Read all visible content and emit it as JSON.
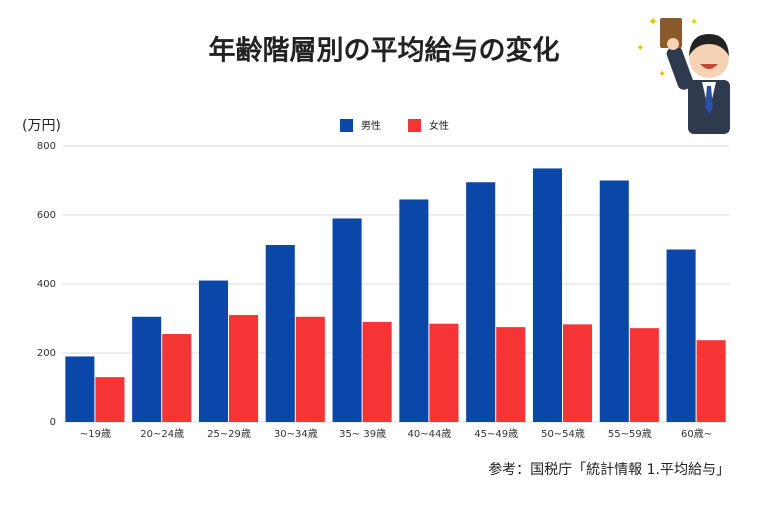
{
  "chart_data": {
    "type": "bar",
    "title": "年齢階層別の平均給与の変化",
    "y_label": "(万円)",
    "source": "参考：国税庁「統計情報 1.平均給与」",
    "categories": [
      "~19歳",
      "20~24歳",
      "25~29歳",
      "30~34歳",
      "35~ 39歳",
      "40~44歳",
      "45~49歳",
      "50~54歳",
      "55~59歳",
      "60歳~"
    ],
    "series": [
      {
        "name": "男性",
        "color": "#0a47a8",
        "values": [
          190,
          305,
          410,
          513,
          590,
          645,
          695,
          735,
          700,
          500
        ]
      },
      {
        "name": "女性",
        "color": "#f53535",
        "values": [
          130,
          255,
          310,
          305,
          290,
          285,
          275,
          283,
          272,
          237
        ]
      }
    ],
    "ylim": [
      0,
      800
    ],
    "yticks": [
      0,
      200,
      400,
      600,
      800
    ],
    "grid": true,
    "legend": "top"
  }
}
